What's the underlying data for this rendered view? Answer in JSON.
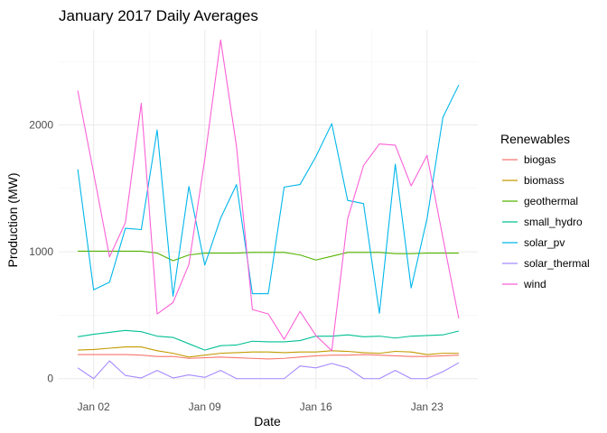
{
  "chart_data": {
    "type": "line",
    "title": "January 2017 Daily Averages",
    "xlabel": "Date",
    "ylabel": "Production (MW)",
    "x": [
      "2017-01-01",
      "2017-01-02",
      "2017-01-03",
      "2017-01-04",
      "2017-01-05",
      "2017-01-06",
      "2017-01-07",
      "2017-01-08",
      "2017-01-09",
      "2017-01-10",
      "2017-01-11",
      "2017-01-12",
      "2017-01-13",
      "2017-01-14",
      "2017-01-15",
      "2017-01-16",
      "2017-01-17",
      "2017-01-18",
      "2017-01-19",
      "2017-01-20",
      "2017-01-21",
      "2017-01-22",
      "2017-01-23",
      "2017-01-24",
      "2017-01-25"
    ],
    "xlim": [
      "2017-01-01",
      "2017-01-25"
    ],
    "ylim": [
      -80,
      2750
    ],
    "x_ticks": [
      {
        "date": "2017-01-02",
        "label": "Jan 02"
      },
      {
        "date": "2017-01-09",
        "label": "Jan 09"
      },
      {
        "date": "2017-01-16",
        "label": "Jan 16"
      },
      {
        "date": "2017-01-23",
        "label": "Jan 23"
      }
    ],
    "y_ticks": [
      {
        "value": 0,
        "label": "0"
      },
      {
        "value": 1000,
        "label": "1000"
      },
      {
        "value": 2000,
        "label": "2000"
      }
    ],
    "grid": true,
    "legend_title": "Renewables",
    "legend_position": "right",
    "series": [
      {
        "name": "biogas",
        "color": "#F8766D",
        "values": [
          190,
          190,
          190,
          190,
          185,
          175,
          175,
          160,
          165,
          170,
          165,
          160,
          155,
          160,
          170,
          180,
          185,
          185,
          190,
          185,
          180,
          175,
          175,
          180,
          185
        ]
      },
      {
        "name": "biomass",
        "color": "#C49A00",
        "values": [
          225,
          230,
          240,
          250,
          250,
          220,
          200,
          170,
          185,
          200,
          205,
          210,
          210,
          205,
          210,
          210,
          220,
          215,
          205,
          200,
          215,
          210,
          190,
          200,
          200
        ]
      },
      {
        "name": "geothermal",
        "color": "#53B400",
        "values": [
          1005,
          1005,
          1005,
          1005,
          1005,
          990,
          930,
          975,
          990,
          990,
          990,
          995,
          995,
          995,
          975,
          935,
          965,
          995,
          995,
          995,
          985,
          985,
          990,
          990,
          990
        ]
      },
      {
        "name": "small_hydro",
        "color": "#00C094",
        "values": [
          330,
          350,
          365,
          380,
          370,
          335,
          325,
          275,
          225,
          260,
          265,
          295,
          290,
          290,
          300,
          335,
          335,
          345,
          330,
          335,
          320,
          335,
          340,
          345,
          375
        ]
      },
      {
        "name": "solar_pv",
        "color": "#00B6EB",
        "values": [
          1650,
          700,
          760,
          1185,
          1175,
          1960,
          650,
          1515,
          895,
          1265,
          1530,
          670,
          670,
          1510,
          1530,
          1750,
          2010,
          1405,
          1380,
          515,
          1690,
          715,
          1260,
          2060,
          2315
        ]
      },
      {
        "name": "solar_thermal",
        "color": "#A58AFF",
        "values": [
          85,
          0,
          140,
          25,
          5,
          65,
          5,
          30,
          10,
          65,
          0,
          0,
          0,
          0,
          100,
          85,
          120,
          85,
          0,
          0,
          65,
          0,
          0,
          55,
          125
        ]
      },
      {
        "name": "wind",
        "color": "#FB61D7",
        "values": [
          2270,
          1620,
          960,
          1230,
          2170,
          510,
          600,
          900,
          1730,
          2670,
          1830,
          545,
          510,
          310,
          530,
          340,
          220,
          1260,
          1680,
          1850,
          1840,
          1520,
          1760,
          1110,
          475
        ]
      }
    ]
  }
}
